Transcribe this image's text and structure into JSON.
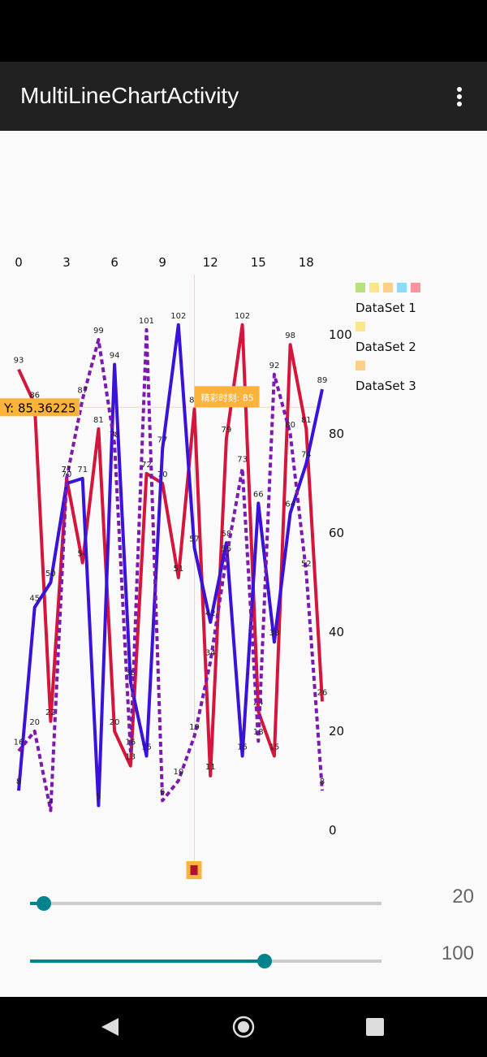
{
  "app_bar": {
    "title": "MultiLineChartActivity"
  },
  "chart_data": {
    "type": "line",
    "x": [
      0,
      1,
      2,
      3,
      4,
      5,
      6,
      7,
      8,
      9,
      10,
      11,
      12,
      13,
      14,
      15,
      16,
      17,
      18,
      19
    ],
    "xlim": [
      0,
      19
    ],
    "xticks": [
      0,
      3,
      6,
      9,
      12,
      15,
      18
    ],
    "ylim": [
      -10,
      110
    ],
    "yticks": [
      0,
      20,
      40,
      60,
      80,
      100
    ],
    "series": [
      {
        "name": "DataSet 1",
        "color": "#d4163c",
        "dashed": false,
        "legend_colors": [
          "#b5e27e",
          "#fce58a",
          "#fdcf87",
          "#8cdcf8",
          "#f9959e"
        ],
        "values": [
          93,
          86,
          22,
          71,
          54,
          81,
          20,
          13,
          72,
          70,
          51,
          85,
          11,
          79,
          102,
          24,
          15,
          98,
          81,
          26
        ]
      },
      {
        "name": "DataSet 2",
        "color": "#3a12d8",
        "dashed": false,
        "legend_colors": [
          "#fce58a"
        ],
        "values": [
          8,
          45,
          50,
          70,
          71,
          5,
          94,
          30,
          15,
          77,
          102,
          57,
          42,
          58,
          15,
          66,
          38,
          64,
          74,
          89
        ]
      },
      {
        "name": "DataSet 3",
        "color": "#7d18b0",
        "dashed": true,
        "legend_colors": [
          "#fdcf87"
        ],
        "values": [
          16,
          20,
          4,
          71,
          87,
          99,
          78,
          16,
          101,
          6,
          10,
          19,
          34,
          55,
          73,
          18,
          92,
          80,
          52,
          8
        ]
      }
    ],
    "highlight": {
      "x": 11,
      "y": 85.36225,
      "y_label": "Y: 85.36225",
      "marker_label": "精彩时刻: 85"
    }
  },
  "sliders": [
    {
      "label": "20"
    },
    {
      "label": "100"
    }
  ]
}
